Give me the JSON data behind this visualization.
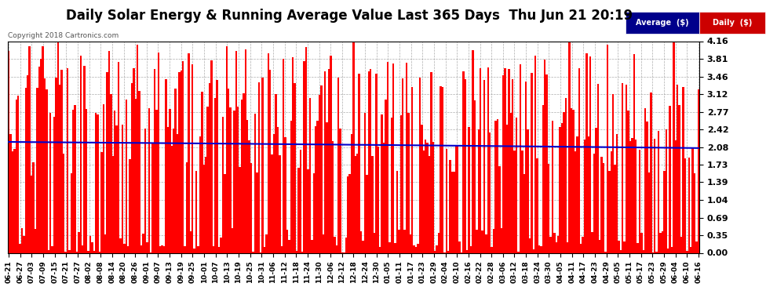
{
  "title": "Daily Solar Energy & Running Average Value Last 365 Days  Thu Jun 21 20:19",
  "copyright": "Copyright 2018 Cartronics.com",
  "ylim": [
    0.0,
    4.16
  ],
  "yticks": [
    0.0,
    0.35,
    0.69,
    1.04,
    1.39,
    1.73,
    2.08,
    2.42,
    2.77,
    3.12,
    3.46,
    3.81,
    4.16
  ],
  "bar_color": "#ff0000",
  "avg_color": "#0000cd",
  "background_color": "#ffffff",
  "title_fontsize": 12,
  "n_bars": 365,
  "avg_value": 2.08,
  "legend_avg_label": "Average  ($)",
  "legend_daily_label": "Daily  ($)",
  "legend_avg_bg": "#00008b",
  "legend_daily_bg": "#cc0000",
  "x_tick_labels": [
    "06-21",
    "06-27",
    "07-03",
    "07-09",
    "07-15",
    "07-21",
    "07-27",
    "08-02",
    "08-08",
    "08-14",
    "08-20",
    "08-26",
    "09-01",
    "09-07",
    "09-13",
    "09-19",
    "09-25",
    "10-01",
    "10-07",
    "10-13",
    "10-19",
    "10-25",
    "10-31",
    "11-06",
    "11-12",
    "11-18",
    "11-24",
    "11-30",
    "12-06",
    "12-12",
    "12-18",
    "12-24",
    "12-30",
    "01-05",
    "01-11",
    "01-17",
    "01-23",
    "01-29",
    "02-04",
    "02-10",
    "02-16",
    "02-22",
    "02-28",
    "03-06",
    "03-12",
    "03-18",
    "03-24",
    "03-30",
    "04-05",
    "04-11",
    "04-17",
    "04-23",
    "04-29",
    "05-05",
    "05-11",
    "05-17",
    "05-23",
    "05-29",
    "06-04",
    "06-10",
    "06-16"
  ]
}
